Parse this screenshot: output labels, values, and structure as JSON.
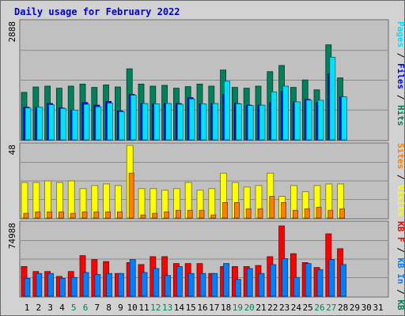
{
  "title": "Daily usage for February 2022",
  "colors": {
    "hits": "#00805c",
    "files": "#0000ff",
    "pages": "#00e0ff",
    "visits": "#ffff00",
    "sites": "#ff8000",
    "kbin": "#ff0000",
    "kbout": "#0080ff",
    "weekend": "#00805c",
    "weekday": "#000000",
    "panel_bg": "#c0c0c0",
    "grid": "#8a8a8a"
  },
  "right_labels": {
    "top": [
      {
        "text": "Pages",
        "color": "#00e0ff"
      },
      {
        "text": " / ",
        "color": "#000000"
      },
      {
        "text": "Files",
        "color": "#0000ff"
      },
      {
        "text": " / ",
        "color": "#000000"
      },
      {
        "text": "Hits",
        "color": "#00805c"
      }
    ],
    "mid": [
      {
        "text": "Sites",
        "color": "#ff8000"
      },
      {
        "text": " / ",
        "color": "#000000"
      },
      {
        "text": "Visits",
        "color": "#ffff00"
      }
    ],
    "bot": [
      {
        "text": "KB F",
        "color": "#ff0000"
      },
      {
        "text": " / ",
        "color": "#000000"
      },
      {
        "text": "KB In",
        "color": "#0080ff"
      },
      {
        "text": " / ",
        "color": "#000000"
      },
      {
        "text": "KB Out",
        "color": "#00805c"
      }
    ]
  },
  "chart_data": {
    "type": "bar",
    "categories": [
      "1",
      "2",
      "3",
      "4",
      "5",
      "6",
      "7",
      "8",
      "9",
      "10",
      "11",
      "12",
      "13",
      "14",
      "15",
      "16",
      "17",
      "18",
      "19",
      "20",
      "21",
      "22",
      "23",
      "24",
      "25",
      "26",
      "27",
      "28",
      "29",
      "30",
      "31"
    ],
    "weekend_days": [
      "5",
      "6",
      "12",
      "13",
      "19",
      "20",
      "26",
      "27"
    ],
    "panels": [
      {
        "id": "top",
        "ymax_label": "2888",
        "ylim": [
          0,
          2888
        ],
        "series": [
          {
            "name": "Hits",
            "values": [
              1150,
              1280,
              1300,
              1250,
              1300,
              1350,
              1270,
              1330,
              1280,
              1720,
              1350,
              1300,
              1320,
              1250,
              1290,
              1350,
              1300,
              1690,
              1270,
              1250,
              1300,
              1650,
              1800,
              1270,
              1450,
              1210,
              2300,
              1500,
              null,
              null,
              null
            ]
          },
          {
            "name": "Files",
            "values": [
              790,
              780,
              880,
              770,
              720,
              900,
              840,
              930,
              700,
              1100,
              880,
              870,
              880,
              880,
              1020,
              870,
              880,
              1100,
              880,
              840,
              840,
              900,
              1170,
              920,
              980,
              900,
              1600,
              1040,
              null,
              null,
              null
            ]
          },
          {
            "name": "Pages",
            "values": [
              770,
              790,
              850,
              760,
              720,
              860,
              800,
              890,
              680,
              1080,
              880,
              870,
              880,
              860,
              990,
              870,
              880,
              1420,
              870,
              830,
              840,
              1160,
              1300,
              920,
              960,
              960,
              2000,
              1040,
              null,
              null,
              null
            ]
          }
        ]
      },
      {
        "id": "mid",
        "ymax_label": "48",
        "ylim": [
          0,
          48
        ],
        "series": [
          {
            "name": "Visits",
            "values": [
              23,
              23,
              24,
              23,
              24,
              19,
              21,
              22,
              21,
              47,
              19,
              19,
              18,
              19,
              23,
              18,
              19,
              29,
              23,
              20,
              21,
              29,
              14,
              21,
              17,
              21,
              22,
              22,
              null,
              null,
              null
            ]
          },
          {
            "name": "Sites",
            "values": [
              3,
              4,
              4,
              4,
              3,
              4,
              4,
              4,
              4,
              29,
              2,
              3,
              4,
              5,
              5,
              5,
              2,
              10,
              10,
              6,
              6,
              14,
              10,
              5,
              6,
              7,
              5,
              6,
              null,
              null,
              null
            ]
          }
        ]
      },
      {
        "id": "bot",
        "ymax_label": "74988",
        "ylim": [
          0,
          74988
        ],
        "series": [
          {
            "name": "KB F",
            "values": [
              30000,
              25000,
              25000,
              20000,
              25000,
              41000,
              37000,
              35000,
              23000,
              34000,
              32000,
              40000,
              40000,
              33000,
              33000,
              33000,
              23000,
              30000,
              30000,
              30000,
              31000,
              40000,
              71000,
              43000,
              34000,
              29000,
              63000,
              48000,
              null,
              null,
              null
            ]
          },
          {
            "name": "KB In",
            "values": [
              18000,
              23000,
              23000,
              18000,
              19000,
              24000,
              22000,
              23000,
              23000,
              37000,
              24000,
              28000,
              21000,
              30000,
              23000,
              23000,
              23000,
              33000,
              17000,
              28000,
              23000,
              32000,
              38000,
              19000,
              33000,
              27000,
              37000,
              32000,
              null,
              null,
              null
            ]
          },
          {
            "name": "KB Out",
            "values": [
              0,
              0,
              0,
              0,
              0,
              0,
              0,
              0,
              0,
              0,
              0,
              0,
              0,
              0,
              0,
              0,
              0,
              0,
              0,
              0,
              0,
              0,
              0,
              0,
              0,
              0,
              0,
              0,
              null,
              null,
              null
            ]
          }
        ]
      }
    ]
  }
}
